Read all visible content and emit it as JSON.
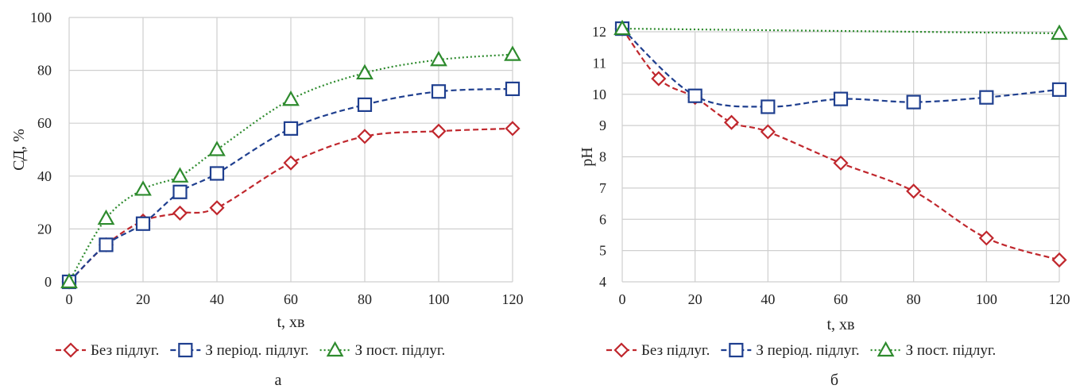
{
  "chart_data": [
    {
      "type": "line",
      "panel_label": "а",
      "xlabel": "t, хв",
      "ylabel": "СД, %",
      "xlim": [
        0,
        120
      ],
      "ylim": [
        0,
        100
      ],
      "xticks": [
        0,
        20,
        40,
        60,
        80,
        100,
        120
      ],
      "yticks": [
        0,
        20,
        40,
        60,
        80,
        100
      ],
      "grid": true,
      "legend": "bottom",
      "series": [
        {
          "name": "Без підлуг.",
          "color": "#c0272d",
          "marker": "diamond",
          "dash": "dashed",
          "x": [
            0,
            10,
            20,
            30,
            40,
            60,
            80,
            100,
            120
          ],
          "y": [
            0,
            14,
            23,
            26,
            28,
            45,
            55,
            57,
            58
          ]
        },
        {
          "name": "З період. підлуг.",
          "color": "#1f3f8f",
          "marker": "square",
          "dash": "dashed",
          "x": [
            0,
            10,
            20,
            30,
            40,
            60,
            80,
            100,
            120
          ],
          "y": [
            0,
            14,
            22,
            34,
            41,
            58,
            67,
            72,
            73
          ]
        },
        {
          "name": "З пост. підлуг.",
          "color": "#2e8b2e",
          "marker": "triangle",
          "dash": "dotted",
          "x": [
            0,
            10,
            20,
            30,
            40,
            60,
            80,
            100,
            120
          ],
          "y": [
            0,
            24,
            35,
            40,
            50,
            69,
            79,
            84,
            86
          ]
        }
      ]
    },
    {
      "type": "line",
      "panel_label": "б",
      "xlabel": "t, хв",
      "ylabel": "pH",
      "xlim": [
        0,
        120
      ],
      "ylim": [
        4,
        12
      ],
      "xticks": [
        0,
        20,
        40,
        60,
        80,
        100,
        120
      ],
      "yticks": [
        4,
        5,
        6,
        7,
        8,
        9,
        10,
        11,
        12
      ],
      "grid": true,
      "legend": "bottom",
      "series": [
        {
          "name": "Без підлуг.",
          "color": "#c0272d",
          "marker": "diamond",
          "dash": "dashed",
          "x": [
            0,
            10,
            20,
            30,
            40,
            60,
            80,
            100,
            120
          ],
          "y": [
            12.1,
            10.5,
            9.9,
            9.1,
            8.8,
            7.8,
            6.9,
            5.4,
            4.7
          ]
        },
        {
          "name": "З період. підлуг.",
          "color": "#1f3f8f",
          "marker": "square",
          "dash": "dashed",
          "x": [
            0,
            20,
            40,
            60,
            80,
            100,
            120
          ],
          "y": [
            12.1,
            9.95,
            9.6,
            9.85,
            9.75,
            9.9,
            10.15
          ]
        },
        {
          "name": "З пост. підлуг.",
          "color": "#2e8b2e",
          "marker": "triangle",
          "dash": "dotted",
          "x": [
            0,
            120
          ],
          "y": [
            12.1,
            11.95
          ]
        }
      ]
    }
  ]
}
